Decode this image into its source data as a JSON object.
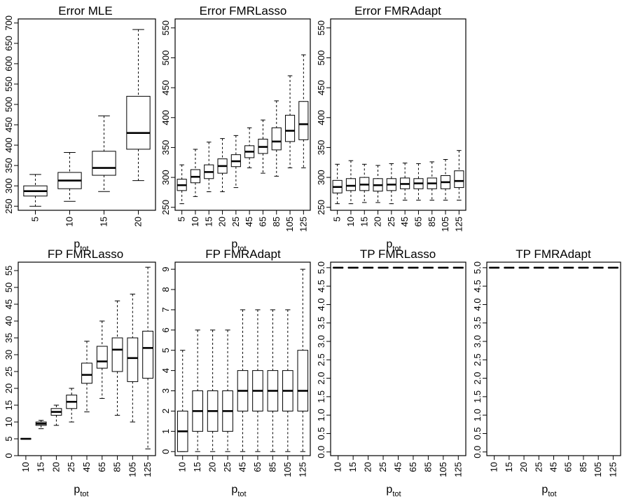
{
  "chart_data": [
    {
      "type": "boxplot",
      "title": "Error MLE",
      "xlabel": "p",
      "xlabel_subscript": "tot",
      "categories": [
        "5",
        "10",
        "15",
        "20"
      ],
      "yticks": [
        "250",
        "300",
        "350",
        "400",
        "450",
        "500",
        "550",
        "600",
        "650",
        "700"
      ],
      "ylim": [
        240,
        710
      ],
      "boxes": [
        {
          "min": 250,
          "q1": 275,
          "median": 287,
          "q3": 300,
          "max": 328
        },
        {
          "min": 262,
          "q1": 293,
          "median": 313,
          "q3": 333,
          "max": 382
        },
        {
          "min": 286,
          "q1": 326,
          "median": 344,
          "q3": 385,
          "max": 472
        },
        {
          "min": 313,
          "q1": 390,
          "median": 430,
          "q3": 520,
          "max": 684
        }
      ]
    },
    {
      "type": "boxplot",
      "title": "Error FMRLasso",
      "xlabel": "p",
      "xlabel_subscript": "tot",
      "categories": [
        "5",
        "10",
        "15",
        "20",
        "25",
        "45",
        "65",
        "85",
        "105",
        "125"
      ],
      "yticks": [
        "250",
        "300",
        "350",
        "400",
        "450",
        "500",
        "550"
      ],
      "ylim": [
        245,
        565
      ],
      "boxes": [
        {
          "min": 256,
          "q1": 278,
          "median": 287,
          "q3": 297,
          "max": 321
        },
        {
          "min": 268,
          "q1": 291,
          "median": 301,
          "q3": 313,
          "max": 347
        },
        {
          "min": 276,
          "q1": 298,
          "median": 309,
          "q3": 321,
          "max": 359
        },
        {
          "min": 276,
          "q1": 307,
          "median": 319,
          "q3": 331,
          "max": 365
        },
        {
          "min": 283,
          "q1": 318,
          "median": 327,
          "q3": 338,
          "max": 370
        },
        {
          "min": 316,
          "q1": 333,
          "median": 343,
          "q3": 353,
          "max": 383
        },
        {
          "min": 307,
          "q1": 340,
          "median": 351,
          "q3": 364,
          "max": 396
        },
        {
          "min": 302,
          "q1": 346,
          "median": 360,
          "q3": 383,
          "max": 428
        },
        {
          "min": 316,
          "q1": 360,
          "median": 378,
          "q3": 404,
          "max": 470
        },
        {
          "min": 316,
          "q1": 363,
          "median": 389,
          "q3": 427,
          "max": 505
        }
      ]
    },
    {
      "type": "boxplot",
      "title": "Error FMRAdapt",
      "xlabel": "p",
      "xlabel_subscript": "tot",
      "categories": [
        "5",
        "10",
        "15",
        "20",
        "25",
        "45",
        "65",
        "85",
        "105",
        "125"
      ],
      "yticks": [
        "250",
        "300",
        "350",
        "400",
        "450",
        "500",
        "550"
      ],
      "ylim": [
        245,
        565
      ],
      "boxes": [
        {
          "min": 256,
          "q1": 274,
          "median": 284,
          "q3": 295,
          "max": 322
        },
        {
          "min": 256,
          "q1": 278,
          "median": 286,
          "q3": 298,
          "max": 328
        },
        {
          "min": 258,
          "q1": 278,
          "median": 288,
          "q3": 300,
          "max": 322
        },
        {
          "min": 258,
          "q1": 277,
          "median": 287,
          "q3": 298,
          "max": 320
        },
        {
          "min": 256,
          "q1": 278,
          "median": 288,
          "q3": 298,
          "max": 323
        },
        {
          "min": 262,
          "q1": 281,
          "median": 289,
          "q3": 299,
          "max": 324
        },
        {
          "min": 262,
          "q1": 281,
          "median": 290,
          "q3": 298,
          "max": 323
        },
        {
          "min": 262,
          "q1": 281,
          "median": 290,
          "q3": 299,
          "max": 326
        },
        {
          "min": 262,
          "q1": 281,
          "median": 292,
          "q3": 303,
          "max": 330
        },
        {
          "min": 262,
          "q1": 283,
          "median": 294,
          "q3": 311,
          "max": 345
        }
      ]
    },
    {
      "type": "boxplot",
      "title": "FP FMRLasso",
      "xlabel": "p",
      "xlabel_subscript": "tot",
      "categories": [
        "10",
        "15",
        "20",
        "25",
        "45",
        "65",
        "85",
        "105",
        "125"
      ],
      "yticks": [
        "0",
        "5",
        "10",
        "15",
        "20",
        "25",
        "30",
        "35",
        "40",
        "45",
        "50",
        "55"
      ],
      "ylim": [
        0,
        57.5
      ],
      "boxes": [
        {
          "min": 5,
          "q1": 5,
          "median": 5,
          "q3": 5,
          "max": 5
        },
        {
          "min": 8,
          "q1": 9,
          "median": 9.5,
          "q3": 10,
          "max": 10.5
        },
        {
          "min": 9,
          "q1": 12,
          "median": 13,
          "q3": 14,
          "max": 15
        },
        {
          "min": 10,
          "q1": 14,
          "median": 16,
          "q3": 18,
          "max": 20
        },
        {
          "min": 13,
          "q1": 21.5,
          "median": 24,
          "q3": 27.5,
          "max": 34
        },
        {
          "min": 17,
          "q1": 26,
          "median": 28,
          "q3": 32.5,
          "max": 40
        },
        {
          "min": 12,
          "q1": 25,
          "median": 31.5,
          "q3": 35,
          "max": 46
        },
        {
          "min": 10,
          "q1": 22,
          "median": 29,
          "q3": 35,
          "max": 48
        },
        {
          "min": 2,
          "q1": 23,
          "median": 32,
          "q3": 37,
          "max": 56
        }
      ]
    },
    {
      "type": "boxplot",
      "title": "FP FMRAdapt",
      "xlabel": "p",
      "xlabel_subscript": "tot",
      "categories": [
        "10",
        "15",
        "20",
        "25",
        "45",
        "65",
        "85",
        "105",
        "125"
      ],
      "yticks": [
        "0",
        "1",
        "2",
        "3",
        "4",
        "5",
        "6",
        "7",
        "8",
        "9"
      ],
      "ylim": [
        -0.2,
        9.35
      ],
      "boxes": [
        {
          "min": 0,
          "q1": 0,
          "median": 1,
          "q3": 2,
          "max": 5
        },
        {
          "min": 0,
          "q1": 1,
          "median": 2,
          "q3": 3,
          "max": 6
        },
        {
          "min": 0,
          "q1": 1,
          "median": 2,
          "q3": 3,
          "max": 6
        },
        {
          "min": 0,
          "q1": 1,
          "median": 2,
          "q3": 3,
          "max": 6
        },
        {
          "min": 0,
          "q1": 2,
          "median": 3,
          "q3": 4,
          "max": 7
        },
        {
          "min": 0,
          "q1": 2,
          "median": 3,
          "q3": 4,
          "max": 7
        },
        {
          "min": 0,
          "q1": 2,
          "median": 3,
          "q3": 4,
          "max": 7
        },
        {
          "min": 0,
          "q1": 2,
          "median": 3,
          "q3": 4,
          "max": 7
        },
        {
          "min": 0,
          "q1": 2,
          "median": 3,
          "q3": 5,
          "max": 9
        }
      ]
    },
    {
      "type": "boxplot",
      "title": "TP FMRLasso",
      "xlabel": "p",
      "xlabel_subscript": "tot",
      "categories": [
        "10",
        "15",
        "20",
        "25",
        "45",
        "65",
        "85",
        "105",
        "125"
      ],
      "yticks": [
        "0.0",
        "0.5",
        "1.0",
        "1.5",
        "2.0",
        "2.5",
        "3.0",
        "3.5",
        "4.0",
        "4.5",
        "5.0"
      ],
      "ylim": [
        -0.1,
        5.15
      ],
      "boxes": [
        {
          "min": 5,
          "q1": 5,
          "median": 5,
          "q3": 5,
          "max": 5
        },
        {
          "min": 5,
          "q1": 5,
          "median": 5,
          "q3": 5,
          "max": 5
        },
        {
          "min": 5,
          "q1": 5,
          "median": 5,
          "q3": 5,
          "max": 5
        },
        {
          "min": 5,
          "q1": 5,
          "median": 5,
          "q3": 5,
          "max": 5
        },
        {
          "min": 5,
          "q1": 5,
          "median": 5,
          "q3": 5,
          "max": 5
        },
        {
          "min": 5,
          "q1": 5,
          "median": 5,
          "q3": 5,
          "max": 5
        },
        {
          "min": 5,
          "q1": 5,
          "median": 5,
          "q3": 5,
          "max": 5
        },
        {
          "min": 5,
          "q1": 5,
          "median": 5,
          "q3": 5,
          "max": 5
        },
        {
          "min": 5,
          "q1": 5,
          "median": 5,
          "q3": 5,
          "max": 5
        }
      ]
    },
    {
      "type": "boxplot",
      "title": "TP FMRAdapt",
      "xlabel": "p",
      "xlabel_subscript": "tot",
      "categories": [
        "10",
        "15",
        "20",
        "25",
        "45",
        "65",
        "85",
        "105",
        "125"
      ],
      "yticks": [
        "0.0",
        "0.5",
        "1.0",
        "1.5",
        "2.0",
        "2.5",
        "3.0",
        "3.5",
        "4.0",
        "4.5",
        "5.0"
      ],
      "ylim": [
        -0.1,
        5.15
      ],
      "boxes": [
        {
          "min": 5,
          "q1": 5,
          "median": 5,
          "q3": 5,
          "max": 5
        },
        {
          "min": 5,
          "q1": 5,
          "median": 5,
          "q3": 5,
          "max": 5
        },
        {
          "min": 5,
          "q1": 5,
          "median": 5,
          "q3": 5,
          "max": 5
        },
        {
          "min": 5,
          "q1": 5,
          "median": 5,
          "q3": 5,
          "max": 5
        },
        {
          "min": 5,
          "q1": 5,
          "median": 5,
          "q3": 5,
          "max": 5
        },
        {
          "min": 5,
          "q1": 5,
          "median": 5,
          "q3": 5,
          "max": 5
        },
        {
          "min": 5,
          "q1": 5,
          "median": 5,
          "q3": 5,
          "max": 5
        },
        {
          "min": 5,
          "q1": 5,
          "median": 5,
          "q3": 5,
          "max": 5
        },
        {
          "min": 5,
          "q1": 5,
          "median": 5,
          "q3": 5,
          "max": 5
        }
      ]
    }
  ]
}
